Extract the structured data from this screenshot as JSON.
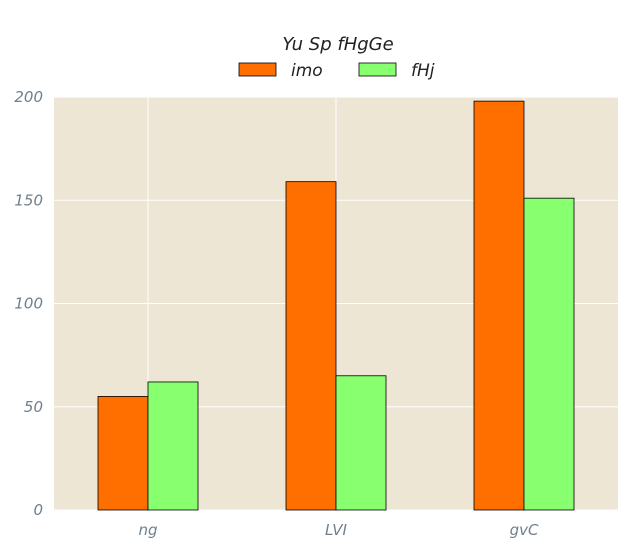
{
  "chart_data": {
    "type": "bar",
    "categories": [
      "ng",
      "LVI",
      "gvC"
    ],
    "series": [
      {
        "name": "imo",
        "values": [
          55,
          159,
          198
        ],
        "color": "#ff6f00"
      },
      {
        "name": "fHj",
        "values": [
          62,
          65,
          151
        ],
        "color": "#88ff6e"
      }
    ],
    "ylim": [
      0,
      200
    ],
    "yticks": [
      0,
      50,
      100,
      150,
      200
    ],
    "grid": true,
    "legend_title": "Yu Sp fHgGe",
    "legend_placement": "top-center",
    "background_color": "#ede6d4",
    "grid_color": "#ffffff"
  }
}
